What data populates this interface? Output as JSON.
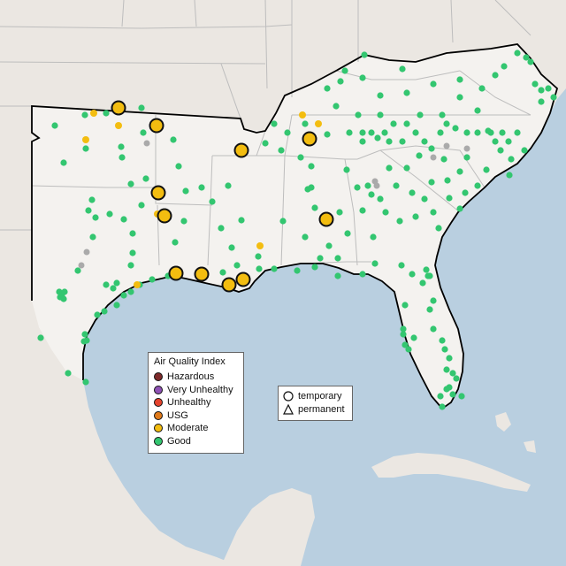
{
  "legend": {
    "title": "Air Quality Index",
    "categories": [
      {
        "label": "Hazardous",
        "color": "#7e2a2a"
      },
      {
        "label": "Very Unhealthy",
        "color": "#8f52b5"
      },
      {
        "label": "Unhealthy",
        "color": "#e5432d"
      },
      {
        "label": "USG",
        "color": "#e07a1a"
      },
      {
        "label": "Moderate",
        "color": "#f3bd10"
      },
      {
        "label": "Good",
        "color": "#33c670"
      }
    ]
  },
  "monitor_types": {
    "temporary": "temporary",
    "permanent": "permanent"
  },
  "colors": {
    "water": "#b9cfe0",
    "land": "#ebe7e2",
    "region_land": "#f4f2ef",
    "state_border": "#bdbdbd",
    "region_outline": "#000000",
    "good": "#33c670",
    "moderate": "#f3bd10",
    "no_data": "#aaaaaa"
  }
}
